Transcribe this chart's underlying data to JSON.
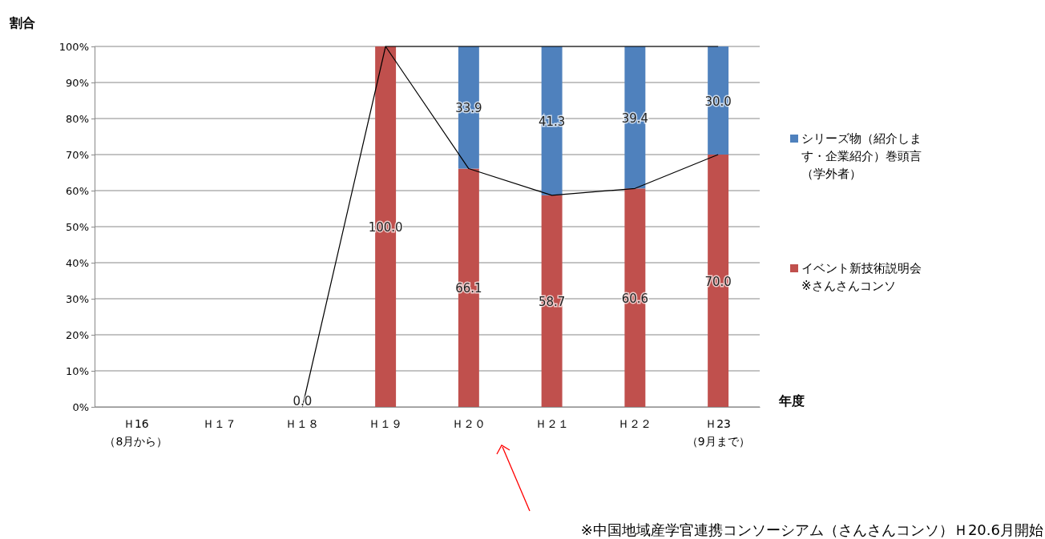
{
  "chart_data": {
    "type": "bar",
    "stacked": true,
    "ylabel": "割合",
    "xlabel": "年度",
    "categories": [
      "Ｈ16\n（8月から）",
      "Ｈ１７",
      "Ｈ１８",
      "Ｈ１９",
      "Ｈ２０",
      "Ｈ２１",
      "Ｈ２２",
      "Ｈ23\n（9月まで）"
    ],
    "series": [
      {
        "name": "イベント新技術説明会※さんさんコンソ",
        "color": "#c0504d",
        "values": [
          null,
          null,
          0,
          100,
          66.1,
          58.7,
          60.6,
          70
        ],
        "value_labels": [
          null,
          null,
          "0.0",
          "100.0",
          "66.1",
          "58.7",
          "60.6",
          "70.0"
        ]
      },
      {
        "name": "シリーズ物（紹介します・企業紹介）巻頭言（学外者）",
        "color": "#4f81bd",
        "values": [
          null,
          null,
          null,
          null,
          33.9,
          41.3,
          39.4,
          30
        ],
        "value_labels": [
          null,
          null,
          null,
          null,
          "33.9",
          "41.3",
          "39.4",
          "30.0"
        ]
      },
      {
        "type": "line",
        "color": "#000000",
        "values": [
          null,
          null,
          0,
          100,
          66.1,
          58.7,
          60.6,
          70
        ]
      },
      {
        "type": "line",
        "color": "#000000",
        "values": [
          null,
          null,
          null,
          100,
          100,
          100,
          100,
          100
        ]
      }
    ],
    "ylim": [
      0,
      100
    ],
    "yticks": [
      {
        "value": 0,
        "label": "0%"
      },
      {
        "value": 10,
        "label": "10%"
      },
      {
        "value": 20,
        "label": "20%"
      },
      {
        "value": 30,
        "label": "30%"
      },
      {
        "value": 40,
        "label": "40%"
      },
      {
        "value": 50,
        "label": "50%"
      },
      {
        "value": 60,
        "label": "60%"
      },
      {
        "value": 70,
        "label": "70%"
      },
      {
        "value": 80,
        "label": "80%"
      },
      {
        "value": 90,
        "label": "90%"
      },
      {
        "value": 100,
        "label": "100%"
      }
    ],
    "grid": "y",
    "legend": "right",
    "annotations": [
      "※中国地域産学官連携コンソーシアム（さんさんコンソ）Ｈ20.6月開始"
    ]
  }
}
